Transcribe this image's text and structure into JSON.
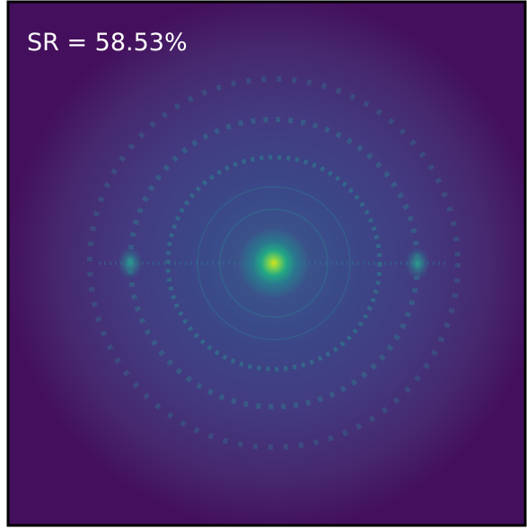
{
  "annotation": "SR = 58.53%"
}
